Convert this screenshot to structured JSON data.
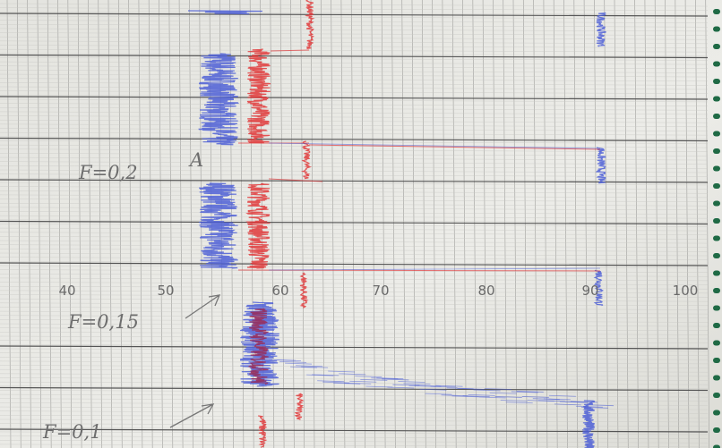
{
  "scale": {
    "labels": [
      "40",
      "50",
      "60",
      "70",
      "80",
      "90",
      "100"
    ]
  },
  "annotations": [
    "F=0,2",
    "F=0,15",
    "F=0,1",
    "A"
  ]
}
